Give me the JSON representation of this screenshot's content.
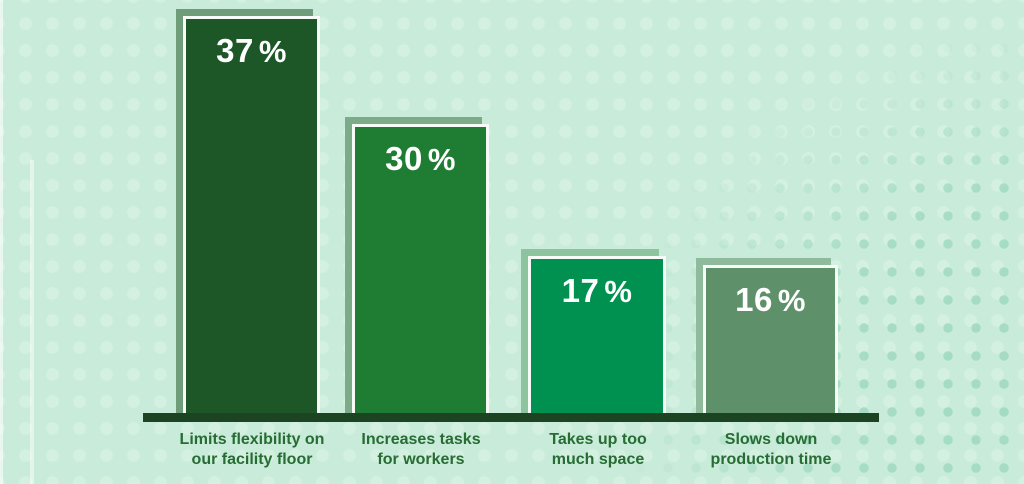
{
  "chart_data": {
    "type": "bar",
    "title": "",
    "unit": "%",
    "categories": [
      "Limits flexibility on our facility floor",
      "Increases tasks for workers",
      "Takes up too much space",
      "Slows down production time"
    ],
    "values": [
      37,
      30,
      17,
      16
    ],
    "ylim": [
      0,
      40
    ],
    "grid": false,
    "legend": "none",
    "bars": [
      {
        "value": "37",
        "percent_sign": "%",
        "label_line1": "Limits flexibility on",
        "label_line2": "our facility floor",
        "fill_color": "#1d5728",
        "shadow_color": "#6f9c79"
      },
      {
        "value": "30",
        "percent_sign": "%",
        "label_line1": "Increases tasks",
        "label_line2": "for workers",
        "fill_color": "#1f7c33",
        "shadow_color": "#7cab87"
      },
      {
        "value": "17",
        "percent_sign": "%",
        "label_line1": "Takes up too",
        "label_line2": "much space",
        "fill_color": "#009150",
        "shadow_color": "#8ec49d"
      },
      {
        "value": "16",
        "percent_sign": "%",
        "label_line1": "Slows down",
        "label_line2": "production time",
        "fill_color": "#5e9169",
        "shadow_color": "#8fba9b"
      }
    ],
    "colors": {
      "background": "#c9ebd9",
      "light_dots": "#d4f0e0",
      "dark_dots": "#a3dbc1",
      "axis_line": "#1d4422",
      "category_label_text": "#266c33",
      "value_label_text": "#ffffff",
      "bar_border": "#f6fbf7"
    }
  }
}
